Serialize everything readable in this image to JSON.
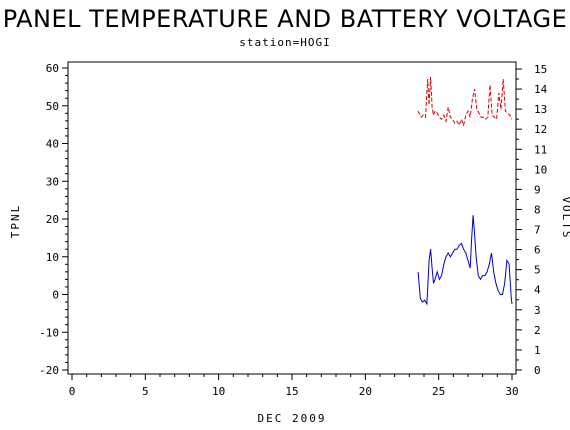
{
  "header": {
    "title": "PANEL TEMPERATURE AND BATTERY VOLTAGE",
    "subtitle": "station=HOGI"
  },
  "chart_data": {
    "type": "line",
    "title": "PANEL TEMPERATURE AND BATTERY VOLTAGE",
    "subtitle": "station=HOGI",
    "xlabel": "DEC 2009",
    "ylabel_left": "TPNL",
    "ylabel_right": "VOLTS",
    "xlim": [
      0,
      30
    ],
    "ylim_left": [
      -22,
      62
    ],
    "ylim_right": [
      0,
      15
    ],
    "x_ticks": [
      0,
      5,
      10,
      15,
      20,
      25,
      30
    ],
    "y_ticks_left": [
      -20,
      -10,
      0,
      10,
      20,
      30,
      40,
      50,
      60
    ],
    "y_ticks_right": [
      0,
      1,
      2,
      3,
      4,
      5,
      6,
      7,
      8,
      9,
      10,
      11,
      12,
      13,
      14,
      15
    ],
    "grid": false,
    "colors": {
      "tpnl": "#0000cc",
      "volts": "#dd0000"
    },
    "series": [
      {
        "id": "tpnl",
        "axis": "left",
        "style": "solid",
        "x": [
          23.6,
          23.75,
          23.9,
          24.05,
          24.2,
          24.35,
          24.45,
          24.55,
          24.65,
          24.75,
          24.9,
          25.05,
          25.2,
          25.35,
          25.5,
          25.65,
          25.8,
          25.95,
          26.1,
          26.25,
          26.4,
          26.55,
          26.7,
          26.85,
          27.0,
          27.15,
          27.25,
          27.35,
          27.45,
          27.55,
          27.7,
          27.85,
          28.0,
          28.15,
          28.3,
          28.45,
          28.6,
          28.75,
          28.9,
          29.05,
          29.2,
          29.35,
          29.5,
          29.65,
          29.8,
          29.95,
          30.0
        ],
        "y": [
          6,
          -1,
          -2,
          -1.5,
          -2.5,
          9,
          12,
          7,
          3,
          4,
          6,
          4,
          5,
          8,
          10,
          11,
          10,
          11,
          12,
          12,
          13,
          13.5,
          12,
          11,
          9,
          7,
          15,
          21,
          16,
          10,
          5,
          4,
          5,
          5,
          6,
          8,
          11,
          6,
          3,
          1,
          0,
          0,
          3,
          9,
          8,
          -1,
          -2.5
        ]
      },
      {
        "id": "volts",
        "axis": "right",
        "style": "dashed",
        "x": [
          23.6,
          23.8,
          23.95,
          24.1,
          24.25,
          24.35,
          24.45,
          24.55,
          24.65,
          24.75,
          24.9,
          25.05,
          25.2,
          25.35,
          25.5,
          25.65,
          25.8,
          25.95,
          26.1,
          26.25,
          26.4,
          26.55,
          26.7,
          26.85,
          27.0,
          27.15,
          27.3,
          27.45,
          27.6,
          27.75,
          27.9,
          28.05,
          28.2,
          28.35,
          28.5,
          28.65,
          28.8,
          28.95,
          29.1,
          29.25,
          29.4,
          29.55,
          29.7,
          29.85,
          30.0
        ],
        "y": [
          12.9,
          12.6,
          12.7,
          12.6,
          14.5,
          13.2,
          14.6,
          13.1,
          12.7,
          12.9,
          12.8,
          12.6,
          12.5,
          12.7,
          12.4,
          13.1,
          12.6,
          12.5,
          12.3,
          12.4,
          12.2,
          12.5,
          12.2,
          12.7,
          12.9,
          12.6,
          13.5,
          14.0,
          13.0,
          12.8,
          12.6,
          12.6,
          12.5,
          12.6,
          14.2,
          12.7,
          12.6,
          12.5,
          13.8,
          13.0,
          14.5,
          12.9,
          12.8,
          12.7,
          12.5
        ]
      }
    ]
  }
}
